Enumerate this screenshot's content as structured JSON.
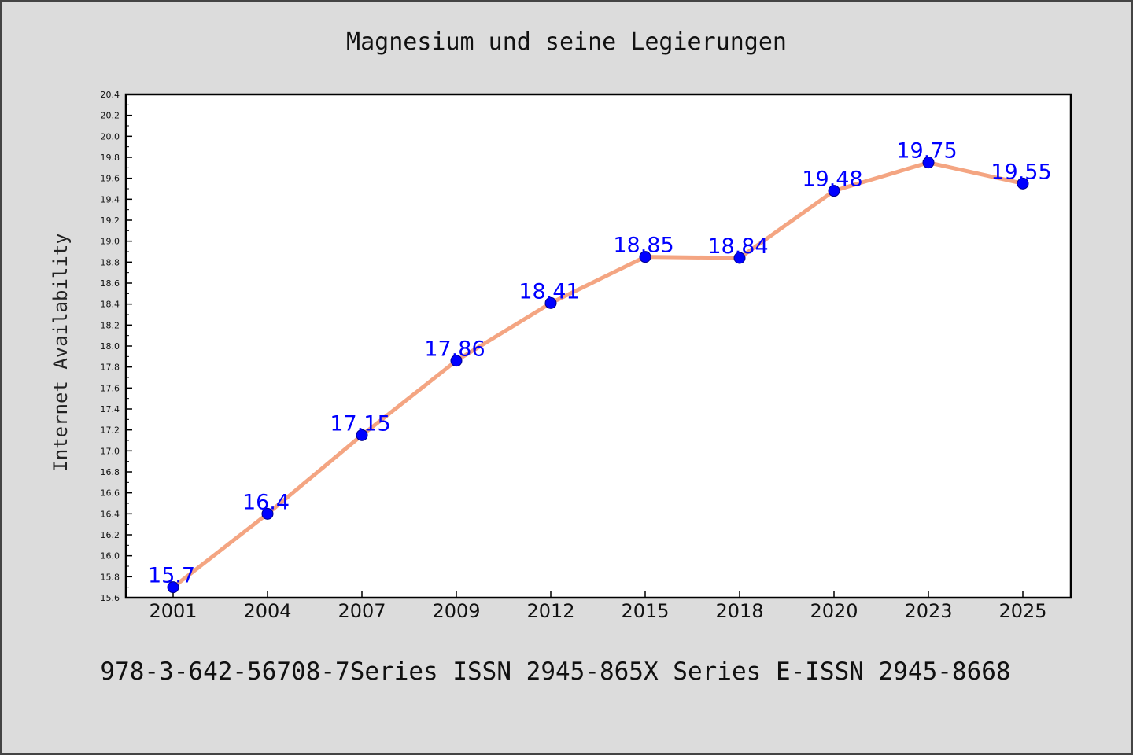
{
  "chart_data": {
    "type": "line",
    "title": "Magnesium und seine Legierungen",
    "xlabel": "",
    "ylabel": "Internet Availability",
    "categories": [
      "2001",
      "2004",
      "2007",
      "2009",
      "2012",
      "2015",
      "2018",
      "2020",
      "2023",
      "2025"
    ],
    "series": [
      {
        "values": [
          15.7,
          16.4,
          17.15,
          17.86,
          18.41,
          18.85,
          18.84,
          19.48,
          19.75,
          19.55
        ],
        "labels": [
          "15.7",
          "16.4",
          "17.15",
          "17.86",
          "18.41",
          "18.85",
          "18.84",
          "19.48",
          "19.75",
          "19.55"
        ]
      }
    ],
    "ylim": [
      15.6,
      20.4
    ],
    "yticks": [
      "15.6",
      "15.8",
      "16.0",
      "16.2",
      "16.4",
      "16.6",
      "16.8",
      "17.0",
      "17.2",
      "17.4",
      "17.6",
      "17.8",
      "18.0",
      "18.2",
      "18.4",
      "18.6",
      "18.8",
      "19.0",
      "19.2",
      "19.4",
      "19.6",
      "19.8",
      "20.0",
      "20.2",
      "20.4"
    ],
    "grid": false,
    "colors": {
      "line": "#f4a582",
      "marker": "#0000ff",
      "data_label": "#0000ff",
      "background": "#dcdcdc",
      "plot_background": "#ffffff"
    }
  },
  "footer": "978-3-642-56708-7Series ISSN 2945-865X Series E-ISSN 2945-8668"
}
